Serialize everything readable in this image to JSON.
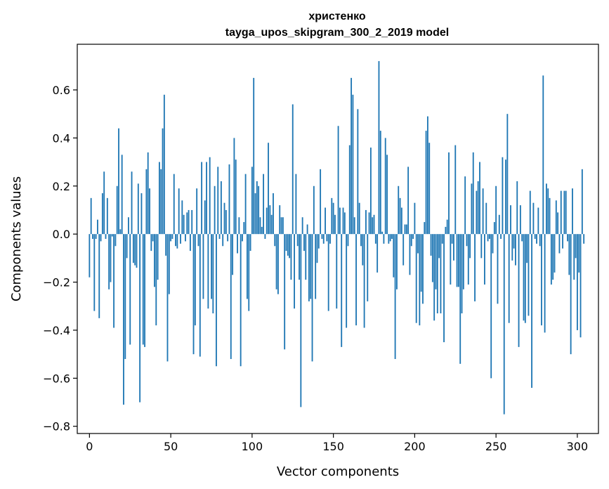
{
  "chart_data": {
    "type": "bar",
    "title": "христенко",
    "subtitle": "tayga_upos_skipgram_300_2_2019 model",
    "xlabel": "Vector components",
    "ylabel": "Components values",
    "xlim": [
      -7.5,
      313
    ],
    "ylim": [
      -0.83,
      0.79
    ],
    "xticks": [
      0,
      50,
      100,
      150,
      200,
      250,
      300
    ],
    "xtick_labels": [
      "0",
      "50",
      "100",
      "150",
      "200",
      "250",
      "300"
    ],
    "yticks": [
      -0.8,
      -0.6,
      -0.4,
      -0.2,
      0.0,
      0.2,
      0.4,
      0.6
    ],
    "ytick_labels": [
      "−0.8",
      "−0.6",
      "−0.4",
      "−0.2",
      "0.0",
      "0.2",
      "0.4",
      "0.6"
    ],
    "color": "#1f77b4",
    "values": [
      -0.18,
      0.15,
      -0.02,
      -0.32,
      -0.02,
      0.06,
      -0.35,
      -0.03,
      0.17,
      0.26,
      -0.02,
      0.15,
      -0.23,
      -0.2,
      -0.01,
      -0.39,
      -0.05,
      0.2,
      0.44,
      0.02,
      0.33,
      -0.71,
      -0.52,
      -0.1,
      0.07,
      -0.46,
      0.26,
      -0.12,
      -0.13,
      -0.14,
      0.21,
      -0.7,
      0.17,
      -0.46,
      -0.47,
      0.27,
      0.34,
      0.19,
      -0.07,
      -0.03,
      -0.22,
      -0.38,
      -0.19,
      0.3,
      0.27,
      0.44,
      0.58,
      -0.09,
      -0.53,
      -0.25,
      -0.03,
      -0.02,
      0.25,
      -0.05,
      -0.06,
      0.19,
      -0.04,
      0.14,
      0.08,
      -0.03,
      0.09,
      0.1,
      -0.07,
      0.1,
      -0.5,
      -0.38,
      0.19,
      -0.05,
      -0.51,
      0.3,
      -0.27,
      0.14,
      0.3,
      -0.31,
      0.32,
      -0.27,
      -0.33,
      0.2,
      -0.55,
      0.28,
      -0.02,
      0.22,
      -0.05,
      0.13,
      0.1,
      -0.03,
      0.29,
      -0.52,
      -0.17,
      0.4,
      0.31,
      -0.08,
      0.07,
      -0.55,
      -0.03,
      0.05,
      0.25,
      -0.27,
      -0.32,
      -0.07,
      0.28,
      0.65,
      0.17,
      0.22,
      0.2,
      0.07,
      0.03,
      0.25,
      -0.02,
      0.11,
      0.38,
      0.12,
      0.08,
      0.17,
      -0.05,
      -0.23,
      -0.25,
      0.12,
      0.07,
      0.07,
      -0.48,
      -0.07,
      -0.09,
      -0.1,
      -0.19,
      0.54,
      -0.31,
      0.25,
      -0.05,
      -0.19,
      -0.72,
      0.07,
      -0.07,
      -0.19,
      0.04,
      -0.28,
      -0.27,
      -0.53,
      0.2,
      -0.27,
      -0.12,
      -0.06,
      0.27,
      -0.02,
      -0.04,
      0.11,
      -0.03,
      -0.32,
      -0.04,
      0.15,
      0.13,
      0.08,
      -0.31,
      0.45,
      0.11,
      -0.47,
      0.11,
      0.09,
      -0.39,
      -0.05,
      0.37,
      0.65,
      0.58,
      0.07,
      -0.38,
      0.52,
      0.13,
      -0.05,
      -0.13,
      -0.39,
      0.1,
      -0.28,
      0.09,
      0.36,
      0.07,
      0.08,
      -0.04,
      -0.16,
      0.72,
      0.43,
      0.01,
      -0.04,
      0.4,
      0.33,
      -0.04,
      -0.03,
      -0.02,
      -0.18,
      -0.52,
      -0.23,
      0.2,
      0.15,
      0.11,
      -0.13,
      0.04,
      0.04,
      0.28,
      -0.17,
      -0.05,
      -0.02,
      0.13,
      -0.37,
      -0.08,
      -0.38,
      -0.24,
      -0.29,
      0.05,
      0.43,
      0.49,
      0.38,
      -0.09,
      -0.2,
      -0.36,
      -0.23,
      -0.33,
      -0.1,
      -0.33,
      -0.04,
      -0.45,
      0.03,
      0.06,
      0.34,
      -0.21,
      -0.04,
      -0.11,
      0.37,
      -0.22,
      -0.22,
      -0.54,
      -0.33,
      -0.23,
      0.24,
      -0.05,
      -0.21,
      -0.1,
      0.21,
      0.34,
      -0.28,
      0.18,
      0.22,
      0.3,
      -0.1,
      0.19,
      -0.21,
      0.13,
      -0.03,
      -0.02,
      -0.6,
      -0.08,
      0.05,
      0.2,
      -0.29,
      0.08,
      -0.02,
      0.32,
      -0.75,
      0.31,
      0.5,
      -0.37,
      0.12,
      -0.11,
      -0.06,
      -0.13,
      0.22,
      -0.47,
      0.12,
      -0.03,
      -0.36,
      -0.37,
      -0.12,
      -0.34,
      0.18,
      -0.64,
      0.13,
      -0.02,
      -0.04,
      0.11,
      -0.05,
      -0.38,
      0.66,
      -0.41,
      0.21,
      0.19,
      0.15,
      -0.21,
      -0.19,
      -0.16,
      0.14,
      0.09,
      -0.08,
      0.18,
      -0.06,
      0.18,
      0.18,
      -0.03,
      -0.17,
      -0.5,
      0.19,
      -0.19,
      -0.1,
      -0.4,
      -0.16,
      -0.43,
      0.27,
      -0.04
    ]
  }
}
